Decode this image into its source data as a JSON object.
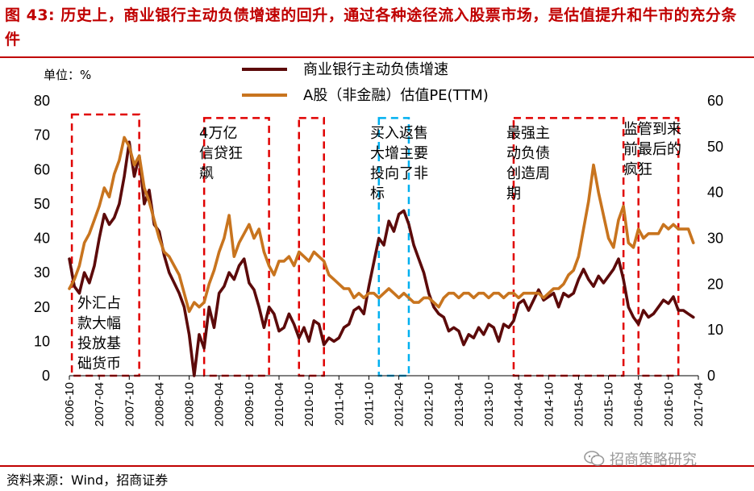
{
  "header": {
    "figure_label": "图 43:",
    "title": "历史上，商业银行主动负债增速的回升，通过各种途径流入股票市场，是估值提升和牛市的充分条件"
  },
  "footer": {
    "source": "资料来源：Wind，招商证券",
    "watermark": "招商策略研究",
    "watermark_icon": "wechat-icon"
  },
  "chart_data": {
    "type": "line",
    "unit_label": "单位：%",
    "left_axis": {
      "min": 0,
      "max": 80,
      "ticks": [
        0,
        10,
        20,
        30,
        40,
        50,
        60,
        70,
        80
      ]
    },
    "right_axis": {
      "min": 0,
      "max": 60,
      "ticks": [
        0,
        10,
        20,
        30,
        40,
        50,
        60
      ]
    },
    "x_tick_labels": [
      "2006-10",
      "2007-04",
      "2007-10",
      "2008-04",
      "2008-10",
      "2009-04",
      "2009-10",
      "2010-04",
      "2010-10",
      "2011-04",
      "2011-10",
      "2012-04",
      "2012-10",
      "2013-04",
      "2013-10",
      "2014-04",
      "2014-10",
      "2015-04",
      "2015-10",
      "2016-04",
      "2016-10",
      "2017-04"
    ],
    "x_range": [
      0,
      126
    ],
    "legend": [
      {
        "name": "商业银行主动负债增速",
        "color": "#5c0a0a",
        "axis": "left"
      },
      {
        "name": "A股（非金融）估值PE(TTM)",
        "color": "#c8741e",
        "axis": "right"
      }
    ],
    "series": [
      {
        "name": "商业银行主动负债增速",
        "axis": "left",
        "color": "#5c0a0a",
        "points": [
          [
            0,
            34
          ],
          [
            1,
            26
          ],
          [
            2,
            24
          ],
          [
            3,
            30
          ],
          [
            4,
            27
          ],
          [
            5,
            32
          ],
          [
            6,
            40
          ],
          [
            7,
            47
          ],
          [
            8,
            44
          ],
          [
            9,
            46
          ],
          [
            10,
            50
          ],
          [
            11,
            58
          ],
          [
            12,
            68
          ],
          [
            13,
            58
          ],
          [
            14,
            64
          ],
          [
            15,
            50
          ],
          [
            16,
            54
          ],
          [
            17,
            44
          ],
          [
            18,
            42
          ],
          [
            19,
            35
          ],
          [
            20,
            30
          ],
          [
            21,
            27
          ],
          [
            22,
            24
          ],
          [
            23,
            20
          ],
          [
            24,
            12
          ],
          [
            25,
            0
          ],
          [
            26,
            12
          ],
          [
            27,
            8
          ],
          [
            28,
            20
          ],
          [
            29,
            14
          ],
          [
            30,
            24
          ],
          [
            31,
            26
          ],
          [
            32,
            30
          ],
          [
            33,
            28
          ],
          [
            34,
            32
          ],
          [
            35,
            34
          ],
          [
            36,
            27
          ],
          [
            37,
            25
          ],
          [
            38,
            20
          ],
          [
            39,
            14
          ],
          [
            40,
            20
          ],
          [
            41,
            18
          ],
          [
            42,
            13
          ],
          [
            43,
            14
          ],
          [
            44,
            18
          ],
          [
            45,
            15
          ],
          [
            46,
            11
          ],
          [
            47,
            14
          ],
          [
            48,
            10
          ],
          [
            49,
            16
          ],
          [
            50,
            15
          ],
          [
            51,
            9
          ],
          [
            52,
            11
          ],
          [
            53,
            10
          ],
          [
            54,
            11
          ],
          [
            55,
            14
          ],
          [
            56,
            15
          ],
          [
            57,
            19
          ],
          [
            58,
            20
          ],
          [
            59,
            18
          ],
          [
            60,
            26
          ],
          [
            61,
            33
          ],
          [
            62,
            40
          ],
          [
            63,
            38
          ],
          [
            64,
            45
          ],
          [
            65,
            42
          ],
          [
            66,
            47
          ],
          [
            67,
            48
          ],
          [
            68,
            44
          ],
          [
            69,
            38
          ],
          [
            70,
            34
          ],
          [
            71,
            30
          ],
          [
            72,
            24
          ],
          [
            73,
            20
          ],
          [
            74,
            18
          ],
          [
            75,
            17
          ],
          [
            76,
            13
          ],
          [
            77,
            14
          ],
          [
            78,
            13
          ],
          [
            79,
            9
          ],
          [
            80,
            12
          ],
          [
            81,
            11
          ],
          [
            82,
            14
          ],
          [
            83,
            12
          ],
          [
            84,
            15
          ],
          [
            85,
            14
          ],
          [
            86,
            10
          ],
          [
            87,
            15
          ],
          [
            88,
            14
          ],
          [
            89,
            16
          ],
          [
            90,
            21
          ],
          [
            91,
            22
          ],
          [
            92,
            19
          ],
          [
            93,
            22
          ],
          [
            94,
            25
          ],
          [
            95,
            22
          ],
          [
            96,
            23
          ],
          [
            97,
            24
          ],
          [
            98,
            20
          ],
          [
            99,
            24
          ],
          [
            100,
            23
          ],
          [
            101,
            24
          ],
          [
            102,
            28
          ],
          [
            103,
            31
          ],
          [
            104,
            28
          ],
          [
            105,
            26
          ],
          [
            106,
            29
          ],
          [
            107,
            27
          ],
          [
            108,
            29
          ],
          [
            109,
            31
          ],
          [
            110,
            34
          ],
          [
            111,
            28
          ],
          [
            112,
            20
          ],
          [
            113,
            17
          ],
          [
            114,
            15
          ],
          [
            115,
            19
          ],
          [
            116,
            17
          ],
          [
            117,
            18
          ],
          [
            118,
            20
          ],
          [
            119,
            22
          ],
          [
            120,
            21
          ],
          [
            121,
            23
          ],
          [
            122,
            19
          ],
          [
            123,
            19
          ],
          [
            124,
            18
          ],
          [
            125,
            17
          ]
        ]
      },
      {
        "name": "A股（非金融）估值PE(TTM)",
        "axis": "right",
        "color": "#c8741e",
        "points": [
          [
            0,
            19
          ],
          [
            1,
            21
          ],
          [
            2,
            24
          ],
          [
            3,
            29
          ],
          [
            4,
            31
          ],
          [
            5,
            34
          ],
          [
            6,
            37
          ],
          [
            7,
            41
          ],
          [
            8,
            39
          ],
          [
            9,
            44
          ],
          [
            10,
            47
          ],
          [
            11,
            52
          ],
          [
            12,
            50
          ],
          [
            13,
            46
          ],
          [
            14,
            48
          ],
          [
            15,
            41
          ],
          [
            16,
            38
          ],
          [
            17,
            34
          ],
          [
            18,
            30
          ],
          [
            19,
            27
          ],
          [
            20,
            26
          ],
          [
            21,
            24
          ],
          [
            22,
            22
          ],
          [
            23,
            18
          ],
          [
            24,
            14
          ],
          [
            25,
            16
          ],
          [
            26,
            15
          ],
          [
            27,
            16
          ],
          [
            28,
            20
          ],
          [
            29,
            23
          ],
          [
            30,
            27
          ],
          [
            31,
            30
          ],
          [
            32,
            35
          ],
          [
            33,
            26
          ],
          [
            34,
            29
          ],
          [
            35,
            31
          ],
          [
            36,
            33
          ],
          [
            37,
            30
          ],
          [
            38,
            32
          ],
          [
            39,
            27
          ],
          [
            40,
            24
          ],
          [
            41,
            22
          ],
          [
            42,
            25
          ],
          [
            43,
            25
          ],
          [
            44,
            26
          ],
          [
            45,
            24
          ],
          [
            46,
            27
          ],
          [
            47,
            26
          ],
          [
            48,
            25
          ],
          [
            49,
            27
          ],
          [
            50,
            26
          ],
          [
            51,
            25
          ],
          [
            52,
            22
          ],
          [
            53,
            21
          ],
          [
            54,
            20
          ],
          [
            55,
            19
          ],
          [
            56,
            19
          ],
          [
            57,
            17
          ],
          [
            58,
            18
          ],
          [
            59,
            17
          ],
          [
            60,
            18
          ],
          [
            61,
            18
          ],
          [
            62,
            17
          ],
          [
            63,
            18
          ],
          [
            64,
            19
          ],
          [
            65,
            18
          ],
          [
            66,
            17
          ],
          [
            67,
            18
          ],
          [
            68,
            17
          ],
          [
            69,
            16
          ],
          [
            70,
            16
          ],
          [
            71,
            17
          ],
          [
            72,
            17
          ],
          [
            73,
            16
          ],
          [
            74,
            15
          ],
          [
            75,
            17
          ],
          [
            76,
            18
          ],
          [
            77,
            18
          ],
          [
            78,
            17
          ],
          [
            79,
            18
          ],
          [
            80,
            18
          ],
          [
            81,
            17
          ],
          [
            82,
            18
          ],
          [
            83,
            18
          ],
          [
            84,
            17
          ],
          [
            85,
            18
          ],
          [
            86,
            18
          ],
          [
            87,
            17
          ],
          [
            88,
            18
          ],
          [
            89,
            18
          ],
          [
            90,
            17
          ],
          [
            91,
            18
          ],
          [
            92,
            18
          ],
          [
            93,
            18
          ],
          [
            94,
            18
          ],
          [
            95,
            17
          ],
          [
            96,
            18
          ],
          [
            97,
            19
          ],
          [
            98,
            19
          ],
          [
            99,
            20
          ],
          [
            100,
            22
          ],
          [
            101,
            23
          ],
          [
            102,
            26
          ],
          [
            103,
            32
          ],
          [
            104,
            38
          ],
          [
            105,
            46
          ],
          [
            106,
            40
          ],
          [
            107,
            35
          ],
          [
            108,
            30
          ],
          [
            109,
            28
          ],
          [
            110,
            34
          ],
          [
            111,
            37
          ],
          [
            112,
            29
          ],
          [
            113,
            28
          ],
          [
            114,
            32
          ],
          [
            115,
            30
          ],
          [
            116,
            31
          ],
          [
            117,
            31
          ],
          [
            118,
            31
          ],
          [
            119,
            33
          ],
          [
            120,
            32
          ],
          [
            121,
            33
          ],
          [
            122,
            32
          ],
          [
            123,
            32
          ],
          [
            124,
            32
          ],
          [
            125,
            29
          ]
        ]
      }
    ],
    "annotations": [
      {
        "label": "外汇占款大幅投放基础货币",
        "lines": [
          "外汇占",
          "款大幅",
          "投放基",
          "础货币"
        ],
        "box_x": [
          0.5,
          14
        ],
        "box_y": [
          0,
          76
        ],
        "color": "#e00000"
      },
      {
        "label": "4万亿信贷狂飙",
        "lines": [
          "4万亿",
          "信贷狂",
          "飙"
        ],
        "box_x": [
          27,
          40
        ],
        "box_y": [
          0,
          75
        ],
        "color": "#e00000"
      },
      {
        "label": "",
        "lines": [],
        "box_x": [
          46,
          51
        ],
        "box_y": [
          0,
          75
        ],
        "color": "#e00000"
      },
      {
        "label": "买入返售大增主要投向了非标",
        "lines": [
          "买入返售",
          "大增主要",
          "投向了非",
          "标"
        ],
        "box_x": [
          62,
          68
        ],
        "box_y": [
          0,
          75
        ],
        "color": "#00b0f0"
      },
      {
        "label": "最强主动负债创造周期",
        "lines": [
          "最强主",
          "动负债",
          "创造周",
          "期"
        ],
        "box_x": [
          89,
          111
        ],
        "box_y": [
          0,
          75
        ],
        "color": "#e00000"
      },
      {
        "label": "监管到来前最后的疯狂",
        "lines": [
          "监管到来",
          "前最后的",
          "疯狂"
        ],
        "box_x": [
          114,
          122
        ],
        "box_y": [
          0,
          75
        ],
        "color": "#e00000"
      }
    ]
  }
}
